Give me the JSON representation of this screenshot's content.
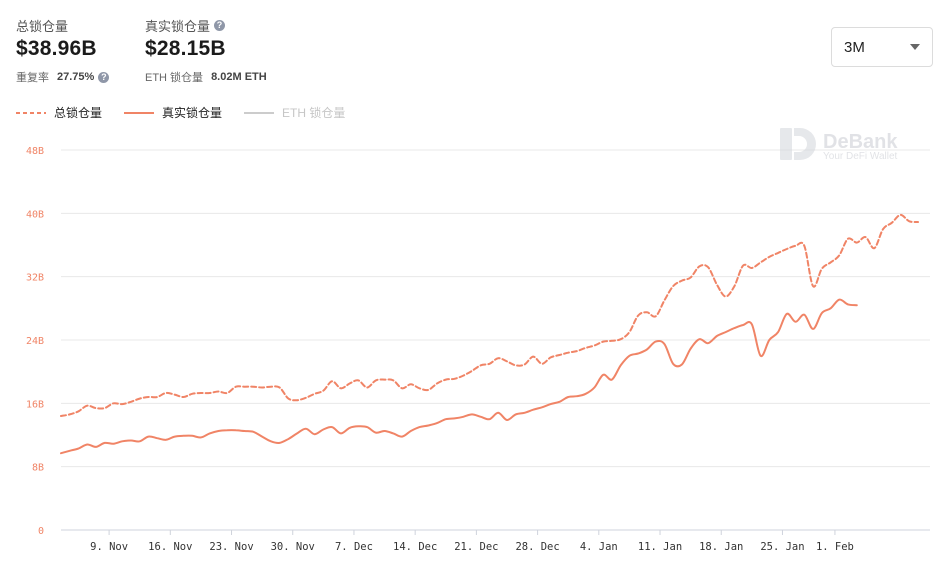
{
  "stats": {
    "total": {
      "label": "总锁仓量",
      "value": "$38.96B",
      "sub_label": "重复率",
      "sub_value": "27.75%"
    },
    "real": {
      "label": "真实锁仓量",
      "value": "$28.15B",
      "sub_label": "ETH 锁仓量",
      "sub_value": "8.02M ETH"
    }
  },
  "range_select": {
    "value": "3M"
  },
  "legend": [
    {
      "label": "总锁仓量",
      "style": "dashed",
      "color": "#f08466",
      "active": true
    },
    {
      "label": "真实锁仓量",
      "style": "solid",
      "color": "#f08466",
      "active": true
    },
    {
      "label": "ETH 锁仓量",
      "style": "solid",
      "color": "#cccccc",
      "active": false
    }
  ],
  "watermark": {
    "brand": "DeBank",
    "tagline": "Your DeFi Wallet"
  },
  "colors": {
    "accent": "#f08466",
    "grid": "#e8e8e8",
    "inactive": "#c6c6c6"
  },
  "chart_data": {
    "type": "line",
    "ylim": [
      0,
      48
    ],
    "ytick_values": [
      0,
      8,
      16,
      24,
      32,
      40,
      48
    ],
    "ytick_labels": [
      "0",
      "8B",
      "16B",
      "24B",
      "32B",
      "40B",
      "48B"
    ],
    "x_ticks": [
      {
        "day": 9,
        "label": "9. Nov"
      },
      {
        "day": 16,
        "label": "16. Nov"
      },
      {
        "day": 23,
        "label": "23. Nov"
      },
      {
        "day": 30,
        "label": "30. Nov"
      },
      {
        "day": 37,
        "label": "7. Dec"
      },
      {
        "day": 44,
        "label": "14. Dec"
      },
      {
        "day": 51,
        "label": "21. Dec"
      },
      {
        "day": 58,
        "label": "28. Dec"
      },
      {
        "day": 65,
        "label": "4. Jan"
      },
      {
        "day": 72,
        "label": "11. Jan"
      },
      {
        "day": 79,
        "label": "18. Jan"
      },
      {
        "day": 86,
        "label": "25. Jan"
      },
      {
        "day": 92,
        "label": "1. Feb"
      }
    ],
    "x_domain": [
      3.5,
      97
    ],
    "series": [
      {
        "name": "总锁仓量",
        "dashed": true,
        "points": [
          [
            3.5,
            14.4
          ],
          [
            4.5,
            14.6
          ],
          [
            5.5,
            15.0
          ],
          [
            6.5,
            15.7
          ],
          [
            7.5,
            15.4
          ],
          [
            8.5,
            15.4
          ],
          [
            9.5,
            16.0
          ],
          [
            10.5,
            15.9
          ],
          [
            11.5,
            16.2
          ],
          [
            12.5,
            16.6
          ],
          [
            13.5,
            16.8
          ],
          [
            14.5,
            16.8
          ],
          [
            15.5,
            17.3
          ],
          [
            16.5,
            17.1
          ],
          [
            17.5,
            16.8
          ],
          [
            18.5,
            17.2
          ],
          [
            19.5,
            17.3
          ],
          [
            20.5,
            17.3
          ],
          [
            21.5,
            17.5
          ],
          [
            22.5,
            17.3
          ],
          [
            23.5,
            18.1
          ],
          [
            24.5,
            18.1
          ],
          [
            25.5,
            18.1
          ],
          [
            26.5,
            18.0
          ],
          [
            27.5,
            18.1
          ],
          [
            28.5,
            18.0
          ],
          [
            29.5,
            16.6
          ],
          [
            30.5,
            16.4
          ],
          [
            31.5,
            16.7
          ],
          [
            32.5,
            17.2
          ],
          [
            33.5,
            17.6
          ],
          [
            34.5,
            18.8
          ],
          [
            35.5,
            17.9
          ],
          [
            36.5,
            18.5
          ],
          [
            37.5,
            18.9
          ],
          [
            38.5,
            18.0
          ],
          [
            39.5,
            18.9
          ],
          [
            40.5,
            19.0
          ],
          [
            41.5,
            18.9
          ],
          [
            42.5,
            17.9
          ],
          [
            43.5,
            18.4
          ],
          [
            44.5,
            17.9
          ],
          [
            45.5,
            17.7
          ],
          [
            46.5,
            18.5
          ],
          [
            47.5,
            19.0
          ],
          [
            48.5,
            19.1
          ],
          [
            49.5,
            19.5
          ],
          [
            50.5,
            20.1
          ],
          [
            51.5,
            20.8
          ],
          [
            52.5,
            21.0
          ],
          [
            53.5,
            21.7
          ],
          [
            54.5,
            21.3
          ],
          [
            55.5,
            20.8
          ],
          [
            56.5,
            20.9
          ],
          [
            57.5,
            21.9
          ],
          [
            58.5,
            21.0
          ],
          [
            59.5,
            21.8
          ],
          [
            60.5,
            22.1
          ],
          [
            61.5,
            22.4
          ],
          [
            62.5,
            22.6
          ],
          [
            63.5,
            23.0
          ],
          [
            64.5,
            23.3
          ],
          [
            65.5,
            23.8
          ],
          [
            66.5,
            23.9
          ],
          [
            67.5,
            24.1
          ],
          [
            68.5,
            25.0
          ],
          [
            69.5,
            27.1
          ],
          [
            70.5,
            27.5
          ],
          [
            71.5,
            27.0
          ],
          [
            72.5,
            29.0
          ],
          [
            73.5,
            30.8
          ],
          [
            74.5,
            31.5
          ],
          [
            75.5,
            31.9
          ],
          [
            76.5,
            33.3
          ],
          [
            77.5,
            33.2
          ],
          [
            78.5,
            31.0
          ],
          [
            79.5,
            29.5
          ],
          [
            80.5,
            30.8
          ],
          [
            81.5,
            33.4
          ],
          [
            82.5,
            33.1
          ],
          [
            83.5,
            33.8
          ],
          [
            84.5,
            34.5
          ],
          [
            85.5,
            35.0
          ],
          [
            86.5,
            35.5
          ],
          [
            87.5,
            35.9
          ],
          [
            88.5,
            35.9
          ],
          [
            89.5,
            30.8
          ],
          [
            90.5,
            33.0
          ],
          [
            91.5,
            33.8
          ],
          [
            92.5,
            34.7
          ],
          [
            93.5,
            36.8
          ],
          [
            94.5,
            36.3
          ],
          [
            95.5,
            37.0
          ],
          [
            96.5,
            35.6
          ],
          [
            97.5,
            38.0
          ],
          [
            98.5,
            38.8
          ],
          [
            99.5,
            39.8
          ],
          [
            100.5,
            39.0
          ],
          [
            101.5,
            38.9
          ]
        ]
      },
      {
        "name": "真实锁仓量",
        "dashed": false,
        "points": [
          [
            3.5,
            9.7
          ],
          [
            4.5,
            10.0
          ],
          [
            5.5,
            10.3
          ],
          [
            6.5,
            10.8
          ],
          [
            7.5,
            10.5
          ],
          [
            8.5,
            11.0
          ],
          [
            9.5,
            10.9
          ],
          [
            10.5,
            11.2
          ],
          [
            11.5,
            11.3
          ],
          [
            12.5,
            11.2
          ],
          [
            13.5,
            11.8
          ],
          [
            14.5,
            11.6
          ],
          [
            15.5,
            11.4
          ],
          [
            16.5,
            11.8
          ],
          [
            17.5,
            11.9
          ],
          [
            18.5,
            11.9
          ],
          [
            19.5,
            11.7
          ],
          [
            20.5,
            12.2
          ],
          [
            21.5,
            12.5
          ],
          [
            22.5,
            12.6
          ],
          [
            23.5,
            12.6
          ],
          [
            24.5,
            12.5
          ],
          [
            25.5,
            12.4
          ],
          [
            26.5,
            11.8
          ],
          [
            27.5,
            11.2
          ],
          [
            28.5,
            11.0
          ],
          [
            29.5,
            11.5
          ],
          [
            30.5,
            12.2
          ],
          [
            31.5,
            12.8
          ],
          [
            32.5,
            12.1
          ],
          [
            33.5,
            12.7
          ],
          [
            34.5,
            13.0
          ],
          [
            35.5,
            12.2
          ],
          [
            36.5,
            12.9
          ],
          [
            37.5,
            13.1
          ],
          [
            38.5,
            13.0
          ],
          [
            39.5,
            12.3
          ],
          [
            40.5,
            12.5
          ],
          [
            41.5,
            12.2
          ],
          [
            42.5,
            11.8
          ],
          [
            43.5,
            12.5
          ],
          [
            44.5,
            13.0
          ],
          [
            45.5,
            13.2
          ],
          [
            46.5,
            13.5
          ],
          [
            47.5,
            14.0
          ],
          [
            48.5,
            14.1
          ],
          [
            49.5,
            14.3
          ],
          [
            50.5,
            14.6
          ],
          [
            51.5,
            14.3
          ],
          [
            52.5,
            14.0
          ],
          [
            53.5,
            14.8
          ],
          [
            54.5,
            13.9
          ],
          [
            55.5,
            14.6
          ],
          [
            56.5,
            14.8
          ],
          [
            57.5,
            15.2
          ],
          [
            58.5,
            15.5
          ],
          [
            59.5,
            15.9
          ],
          [
            60.5,
            16.2
          ],
          [
            61.5,
            16.8
          ],
          [
            62.5,
            16.9
          ],
          [
            63.5,
            17.2
          ],
          [
            64.5,
            18.0
          ],
          [
            65.5,
            19.6
          ],
          [
            66.5,
            19.0
          ],
          [
            67.5,
            20.8
          ],
          [
            68.5,
            22.0
          ],
          [
            69.5,
            22.3
          ],
          [
            70.5,
            22.8
          ],
          [
            71.5,
            23.8
          ],
          [
            72.5,
            23.5
          ],
          [
            73.5,
            21.0
          ],
          [
            74.5,
            20.9
          ],
          [
            75.5,
            22.9
          ],
          [
            76.5,
            24.1
          ],
          [
            77.5,
            23.6
          ],
          [
            78.5,
            24.5
          ],
          [
            79.5,
            25.0
          ],
          [
            80.5,
            25.5
          ],
          [
            81.5,
            25.9
          ],
          [
            82.5,
            26.0
          ],
          [
            83.5,
            22.0
          ],
          [
            84.5,
            24.0
          ],
          [
            85.5,
            25.0
          ],
          [
            86.5,
            27.3
          ],
          [
            87.5,
            26.3
          ],
          [
            88.5,
            27.2
          ],
          [
            89.5,
            25.4
          ],
          [
            90.5,
            27.4
          ],
          [
            91.5,
            28.0
          ],
          [
            92.5,
            29.1
          ],
          [
            93.5,
            28.5
          ],
          [
            94.5,
            28.4
          ]
        ]
      }
    ]
  }
}
